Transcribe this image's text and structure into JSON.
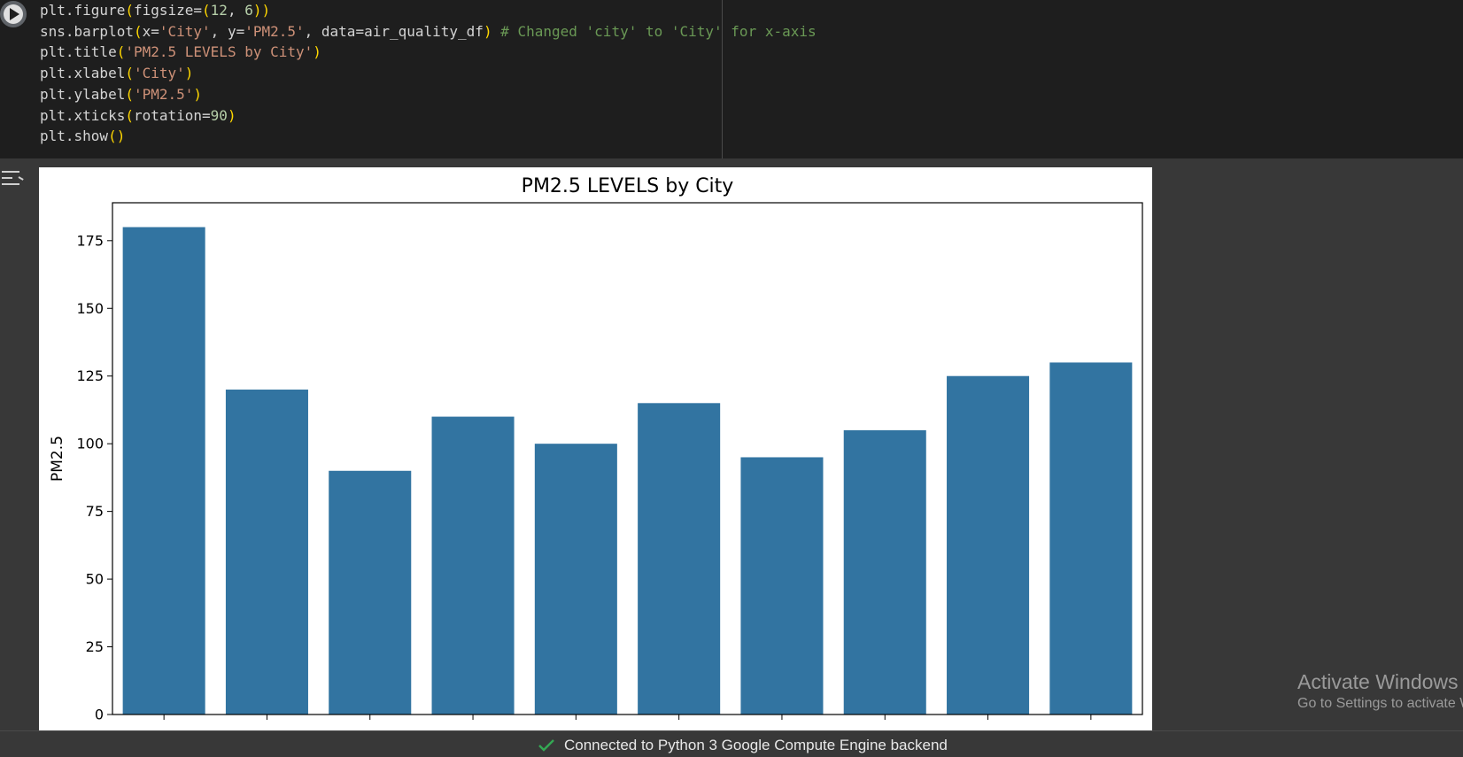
{
  "code_cell": {
    "lines": [
      [
        {
          "t": "plt.figure",
          "c": ""
        },
        {
          "t": "(",
          "c": "p"
        },
        {
          "t": "figsize=",
          "c": ""
        },
        {
          "t": "(",
          "c": "p"
        },
        {
          "t": "12",
          "c": "n"
        },
        {
          "t": ", ",
          "c": ""
        },
        {
          "t": "6",
          "c": "n"
        },
        {
          "t": "))",
          "c": "p"
        }
      ],
      [
        {
          "t": "sns.barplot",
          "c": ""
        },
        {
          "t": "(",
          "c": "p"
        },
        {
          "t": "x=",
          "c": ""
        },
        {
          "t": "'City'",
          "c": "s"
        },
        {
          "t": ", y=",
          "c": ""
        },
        {
          "t": "'PM2.5'",
          "c": "s"
        },
        {
          "t": ", data=air_quality_df",
          "c": ""
        },
        {
          "t": ")",
          "c": "p"
        },
        {
          "t": " # Changed 'city' to 'City' for x-axis",
          "c": "c"
        }
      ],
      [
        {
          "t": "plt.title",
          "c": ""
        },
        {
          "t": "(",
          "c": "p"
        },
        {
          "t": "'PM2.5 LEVELS by City'",
          "c": "s"
        },
        {
          "t": ")",
          "c": "p"
        }
      ],
      [
        {
          "t": "plt.xlabel",
          "c": ""
        },
        {
          "t": "(",
          "c": "p"
        },
        {
          "t": "'City'",
          "c": "s"
        },
        {
          "t": ")",
          "c": "p"
        }
      ],
      [
        {
          "t": "plt.ylabel",
          "c": ""
        },
        {
          "t": "(",
          "c": "p"
        },
        {
          "t": "'PM2.5'",
          "c": "s"
        },
        {
          "t": ")",
          "c": "p"
        }
      ],
      [
        {
          "t": "plt.xticks",
          "c": ""
        },
        {
          "t": "(",
          "c": "p"
        },
        {
          "t": "rotation=",
          "c": ""
        },
        {
          "t": "90",
          "c": "n"
        },
        {
          "t": ")",
          "c": "p"
        }
      ],
      [
        {
          "t": "plt.show",
          "c": ""
        },
        {
          "t": "()",
          "c": "p"
        }
      ]
    ]
  },
  "chart_data": {
    "type": "bar",
    "title": "PM2.5 LEVELS by City",
    "xlabel": "",
    "ylabel": "PM2.5",
    "categories": [
      "",
      "",
      "",
      "",
      "",
      "",
      "",
      "",
      "",
      ""
    ],
    "values": [
      180,
      120,
      90,
      110,
      100,
      115,
      95,
      105,
      125,
      130
    ],
    "ylim": [
      0,
      189
    ],
    "yticks": [
      0,
      25,
      50,
      75,
      100,
      125,
      150,
      175
    ],
    "bar_color": "#3274a1",
    "grid": false
  },
  "watermark": {
    "line1": "Activate Windows",
    "line2": "Go to Settings to activate Windows."
  },
  "status_bar": {
    "text": "Connected to Python 3 Google Compute Engine backend",
    "check_color": "#34a853"
  }
}
